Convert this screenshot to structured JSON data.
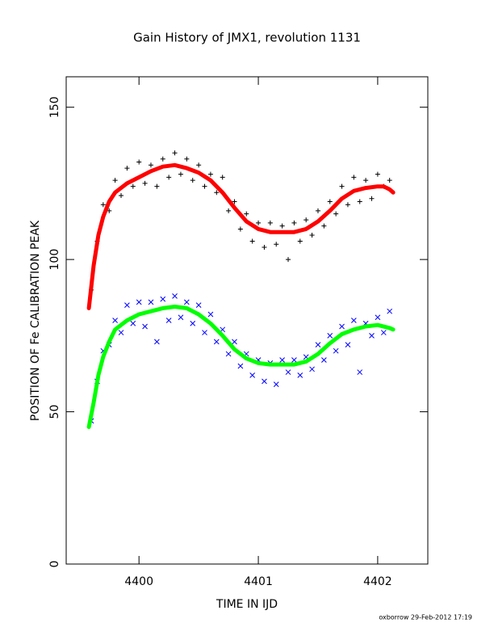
{
  "chart_data": {
    "type": "scatter",
    "title": "Gain History of JMX1, revolution 1131",
    "xlabel": "TIME IN IJD",
    "ylabel": "POSITION OF Fe CALIBRATION PEAK",
    "footer": "oxborrow 29-Feb-2012 17:19",
    "xlim": [
      4399.39,
      4402.42
    ],
    "xticks": [
      4400,
      4401,
      4402
    ],
    "ylim": [
      0,
      160
    ],
    "yticks": [
      0,
      50,
      100,
      150
    ],
    "series": [
      {
        "marker": "+",
        "color": "#000000",
        "x": [
          4399.6,
          4399.65,
          4399.7,
          4399.75,
          4399.8,
          4399.85,
          4399.9,
          4399.95,
          4400.0,
          4400.05,
          4400.1,
          4400.15,
          4400.2,
          4400.25,
          4400.3,
          4400.35,
          4400.4,
          4400.45,
          4400.5,
          4400.55,
          4400.6,
          4400.65,
          4400.7,
          4400.75,
          4400.8,
          4400.85,
          4400.9,
          4400.95,
          4401.0,
          4401.05,
          4401.1,
          4401.15,
          4401.2,
          4401.25,
          4401.3,
          4401.35,
          4401.4,
          4401.45,
          4401.5,
          4401.55,
          4401.6,
          4401.65,
          4401.7,
          4401.75,
          4401.8,
          4401.85,
          4401.9,
          4401.95,
          4402.0,
          4402.05,
          4402.1
        ],
        "values": [
          90,
          106,
          118,
          116,
          126,
          121,
          130,
          124,
          132,
          125,
          131,
          124,
          133,
          127,
          135,
          128,
          133,
          126,
          131,
          124,
          128,
          122,
          127,
          116,
          119,
          110,
          115,
          106,
          112,
          104,
          112,
          105,
          111,
          100,
          112,
          106,
          113,
          108,
          116,
          111,
          119,
          115,
          124,
          118,
          127,
          119,
          126,
          120,
          128,
          124,
          126
        ]
      },
      {
        "marker": "line",
        "color": "#ff0000",
        "x": [
          4399.58,
          4399.62,
          4399.66,
          4399.7,
          4399.75,
          4399.8,
          4399.9,
          4400.0,
          4400.1,
          4400.2,
          4400.3,
          4400.4,
          4400.5,
          4400.6,
          4400.7,
          4400.8,
          4400.9,
          4401.0,
          4401.1,
          4401.2,
          4401.3,
          4401.4,
          4401.5,
          4401.6,
          4401.7,
          4401.8,
          4401.9,
          4402.0,
          4402.05,
          4402.1,
          4402.13
        ],
        "values": [
          84,
          98,
          108,
          114,
          119,
          122,
          125,
          127,
          129,
          130.5,
          131,
          130,
          128.5,
          126,
          122,
          117,
          112.5,
          110,
          109,
          109,
          109,
          110,
          112.5,
          116,
          120,
          122.5,
          123.5,
          124,
          124,
          123,
          122
        ]
      },
      {
        "marker": "x",
        "color": "#0000ff",
        "x": [
          4399.6,
          4399.65,
          4399.7,
          4399.75,
          4399.8,
          4399.85,
          4399.9,
          4399.95,
          4400.0,
          4400.05,
          4400.1,
          4400.15,
          4400.2,
          4400.25,
          4400.3,
          4400.35,
          4400.4,
          4400.45,
          4400.5,
          4400.55,
          4400.6,
          4400.65,
          4400.7,
          4400.75,
          4400.8,
          4400.85,
          4400.9,
          4400.95,
          4401.0,
          4401.05,
          4401.1,
          4401.15,
          4401.2,
          4401.25,
          4401.3,
          4401.35,
          4401.4,
          4401.45,
          4401.5,
          4401.55,
          4401.6,
          4401.65,
          4401.7,
          4401.75,
          4401.8,
          4401.85,
          4401.9,
          4401.95,
          4402.0,
          4402.05,
          4402.1
        ],
        "values": [
          47,
          60,
          70,
          72,
          80,
          76,
          85,
          79,
          86,
          78,
          86,
          73,
          87,
          80,
          88,
          81,
          86,
          79,
          85,
          76,
          82,
          73,
          77,
          69,
          73,
          65,
          69,
          62,
          67,
          60,
          66,
          59,
          67,
          63,
          67,
          62,
          68,
          64,
          72,
          67,
          75,
          70,
          78,
          72,
          80,
          63,
          79,
          75,
          81,
          76,
          83
        ]
      },
      {
        "marker": "line",
        "color": "#00ff00",
        "x": [
          4399.58,
          4399.62,
          4399.66,
          4399.7,
          4399.75,
          4399.8,
          4399.9,
          4400.0,
          4400.1,
          4400.2,
          4400.3,
          4400.4,
          4400.5,
          4400.6,
          4400.7,
          4400.8,
          4400.9,
          4401.0,
          4401.1,
          4401.2,
          4401.3,
          4401.4,
          4401.5,
          4401.6,
          4401.7,
          4401.8,
          4401.9,
          4402.0,
          4402.1,
          4402.13
        ],
        "values": [
          45,
          53,
          62,
          68,
          73,
          77,
          80,
          82,
          83,
          84,
          84.5,
          84,
          82,
          79,
          75,
          70.5,
          67.5,
          66,
          65.5,
          65.5,
          65.5,
          66.5,
          69,
          72.5,
          75.5,
          77,
          78,
          78.5,
          77.5,
          77
        ]
      }
    ]
  }
}
